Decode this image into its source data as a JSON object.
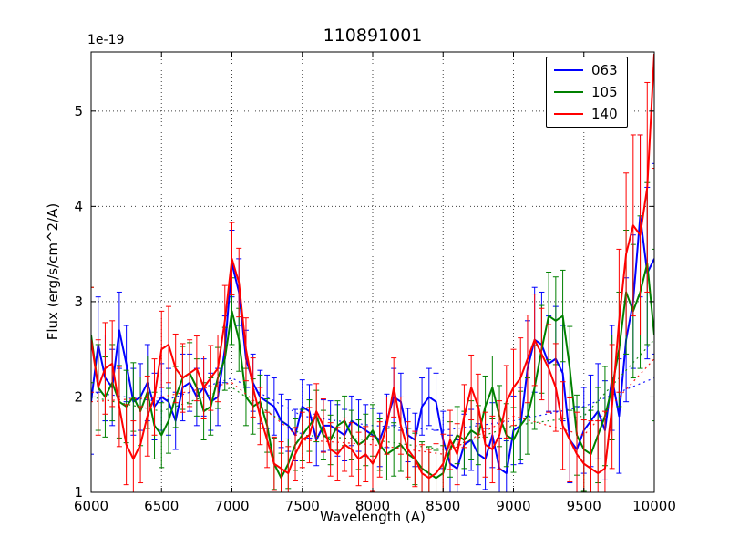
{
  "chart_data": {
    "type": "line",
    "title": "110891001",
    "xlabel": "Wavelength (A)",
    "ylabel": "Flux (erg/s/cm^2/A)",
    "y_offset_text": "1e-19",
    "xlim": [
      6000,
      10000
    ],
    "ylim": [
      1,
      5.62
    ],
    "xticks": [
      6000,
      6500,
      7000,
      7500,
      8000,
      8500,
      9000,
      9500,
      10000
    ],
    "yticks": [
      1,
      2,
      3,
      4,
      5
    ],
    "grid": true,
    "grid_style": "dotted",
    "legend_position": "upper right",
    "x": [
      6000,
      6050,
      6100,
      6150,
      6200,
      6250,
      6300,
      6350,
      6400,
      6450,
      6500,
      6550,
      6600,
      6650,
      6700,
      6750,
      6800,
      6850,
      6900,
      6950,
      7000,
      7050,
      7100,
      7150,
      7200,
      7250,
      7300,
      7350,
      7400,
      7450,
      7500,
      7550,
      7600,
      7650,
      7700,
      7750,
      7800,
      7850,
      7900,
      7950,
      8000,
      8050,
      8100,
      8150,
      8200,
      8250,
      8300,
      8350,
      8400,
      8450,
      8500,
      8550,
      8600,
      8650,
      8700,
      8750,
      8800,
      8850,
      8900,
      8950,
      9000,
      9050,
      9100,
      9150,
      9200,
      9250,
      9300,
      9350,
      9400,
      9450,
      9500,
      9550,
      9600,
      9650,
      9700,
      9750,
      9800,
      9850,
      9900,
      9950,
      10000
    ],
    "continuum_x": [
      6000,
      6500,
      7000,
      7500,
      8000,
      8500,
      9000,
      9500,
      10000
    ],
    "series": [
      {
        "name": "063",
        "color": "#0000ff",
        "values": [
          1.95,
          2.55,
          2.2,
          2.1,
          2.7,
          2.35,
          1.95,
          2.0,
          2.15,
          1.9,
          2.0,
          1.95,
          1.75,
          2.1,
          2.15,
          2.0,
          2.1,
          1.95,
          2.0,
          2.5,
          3.4,
          3.1,
          2.4,
          2.15,
          2.0,
          1.95,
          1.9,
          1.75,
          1.7,
          1.6,
          1.9,
          1.85,
          1.55,
          1.7,
          1.7,
          1.65,
          1.6,
          1.75,
          1.7,
          1.65,
          1.6,
          1.55,
          1.75,
          2.0,
          1.95,
          1.6,
          1.55,
          1.9,
          2.0,
          1.95,
          1.55,
          1.3,
          1.25,
          1.5,
          1.55,
          1.4,
          1.35,
          1.6,
          1.25,
          1.2,
          1.65,
          1.7,
          2.3,
          2.6,
          2.55,
          2.35,
          2.4,
          2.25,
          1.55,
          1.45,
          1.65,
          1.75,
          1.85,
          1.65,
          2.2,
          1.8,
          2.6,
          3.0,
          3.9,
          3.3,
          3.45
        ],
        "errors": [
          0.55,
          0.5,
          0.45,
          0.4,
          0.4,
          0.4,
          0.35,
          0.35,
          0.4,
          0.35,
          0.35,
          0.35,
          0.3,
          0.35,
          0.3,
          0.3,
          0.3,
          0.3,
          0.3,
          0.35,
          0.35,
          0.35,
          0.3,
          0.3,
          0.28,
          0.28,
          0.3,
          0.28,
          0.27,
          0.27,
          0.28,
          0.28,
          0.27,
          0.27,
          0.26,
          0.27,
          0.27,
          0.26,
          0.27,
          0.27,
          0.28,
          0.28,
          0.28,
          0.3,
          0.3,
          0.28,
          0.28,
          0.3,
          0.3,
          0.3,
          0.3,
          0.3,
          0.3,
          0.32,
          0.32,
          0.32,
          0.32,
          0.34,
          0.32,
          0.34,
          0.36,
          0.4,
          0.5,
          0.55,
          0.55,
          0.5,
          0.55,
          0.5,
          0.45,
          0.45,
          0.45,
          0.48,
          0.5,
          0.52,
          0.55,
          0.6,
          0.65,
          0.7,
          0.85,
          0.9,
          1.0
        ],
        "continuum": [
          2.05,
          1.95,
          2.2,
          1.8,
          1.7,
          1.65,
          1.75,
          1.9,
          2.2
        ]
      },
      {
        "name": "105",
        "color": "#008000",
        "values": [
          2.65,
          2.1,
          2.0,
          2.15,
          1.95,
          1.9,
          2.0,
          1.85,
          2.05,
          1.7,
          1.6,
          1.75,
          2.0,
          2.2,
          2.25,
          2.1,
          1.85,
          1.9,
          2.2,
          2.4,
          2.9,
          2.6,
          2.0,
          1.9,
          1.95,
          1.7,
          1.3,
          1.15,
          1.3,
          1.5,
          1.6,
          1.7,
          1.8,
          1.6,
          1.55,
          1.7,
          1.75,
          1.6,
          1.5,
          1.55,
          1.65,
          1.5,
          1.4,
          1.45,
          1.5,
          1.4,
          1.35,
          1.25,
          1.2,
          1.15,
          1.2,
          1.45,
          1.6,
          1.55,
          1.65,
          1.6,
          1.9,
          2.1,
          1.8,
          1.6,
          1.55,
          1.7,
          1.8,
          2.1,
          2.5,
          2.85,
          2.8,
          2.85,
          2.3,
          1.6,
          1.45,
          1.4,
          1.6,
          1.8,
          2.1,
          2.5,
          3.1,
          2.9,
          3.1,
          3.4,
          2.65
        ],
        "errors": [
          0.5,
          0.45,
          0.42,
          0.4,
          0.38,
          0.38,
          0.36,
          0.36,
          0.38,
          0.35,
          0.34,
          0.34,
          0.32,
          0.33,
          0.32,
          0.3,
          0.3,
          0.3,
          0.32,
          0.33,
          0.35,
          0.33,
          0.3,
          0.29,
          0.28,
          0.28,
          0.27,
          0.26,
          0.26,
          0.27,
          0.27,
          0.27,
          0.27,
          0.26,
          0.26,
          0.26,
          0.26,
          0.26,
          0.26,
          0.27,
          0.27,
          0.27,
          0.27,
          0.28,
          0.28,
          0.27,
          0.27,
          0.28,
          0.28,
          0.29,
          0.29,
          0.29,
          0.3,
          0.3,
          0.31,
          0.31,
          0.32,
          0.33,
          0.32,
          0.33,
          0.34,
          0.36,
          0.4,
          0.44,
          0.46,
          0.46,
          0.46,
          0.48,
          0.44,
          0.42,
          0.44,
          0.46,
          0.5,
          0.52,
          0.55,
          0.6,
          0.65,
          0.7,
          0.8,
          0.85,
          0.9
        ],
        "continuum": [
          2.0,
          1.85,
          2.1,
          1.6,
          1.55,
          1.45,
          1.7,
          1.8,
          2.6
        ]
      },
      {
        "name": "140",
        "color": "#ff0000",
        "values": [
          2.6,
          2.1,
          2.3,
          2.35,
          1.9,
          1.5,
          1.35,
          1.5,
          1.8,
          2.0,
          2.5,
          2.55,
          2.3,
          2.2,
          2.25,
          2.3,
          2.1,
          2.2,
          2.3,
          2.8,
          3.45,
          3.2,
          2.5,
          2.1,
          1.8,
          1.55,
          1.3,
          1.25,
          1.2,
          1.4,
          1.55,
          1.6,
          1.85,
          1.7,
          1.45,
          1.4,
          1.5,
          1.45,
          1.35,
          1.4,
          1.3,
          1.45,
          1.7,
          2.1,
          1.7,
          1.45,
          1.35,
          1.2,
          1.15,
          1.2,
          1.3,
          1.55,
          1.4,
          1.8,
          2.1,
          1.9,
          1.5,
          1.45,
          1.6,
          1.95,
          2.1,
          2.2,
          2.4,
          2.6,
          2.45,
          2.3,
          2.1,
          1.7,
          1.55,
          1.4,
          1.3,
          1.25,
          1.2,
          1.25,
          1.9,
          2.8,
          3.5,
          3.8,
          3.7,
          4.2,
          5.6
        ],
        "errors": [
          0.55,
          0.5,
          0.48,
          0.45,
          0.42,
          0.42,
          0.4,
          0.4,
          0.42,
          0.4,
          0.4,
          0.4,
          0.36,
          0.36,
          0.35,
          0.34,
          0.33,
          0.34,
          0.35,
          0.37,
          0.38,
          0.36,
          0.33,
          0.31,
          0.3,
          0.29,
          0.28,
          0.28,
          0.28,
          0.28,
          0.29,
          0.29,
          0.29,
          0.28,
          0.28,
          0.28,
          0.28,
          0.28,
          0.28,
          0.29,
          0.29,
          0.29,
          0.3,
          0.31,
          0.3,
          0.29,
          0.29,
          0.3,
          0.3,
          0.31,
          0.31,
          0.31,
          0.32,
          0.33,
          0.34,
          0.34,
          0.34,
          0.35,
          0.36,
          0.38,
          0.4,
          0.42,
          0.46,
          0.48,
          0.48,
          0.46,
          0.46,
          0.46,
          0.44,
          0.44,
          0.46,
          0.5,
          0.55,
          0.6,
          0.65,
          0.75,
          0.85,
          0.95,
          1.05,
          1.1,
          1.2
        ],
        "continuum": [
          1.95,
          2.0,
          2.15,
          1.55,
          1.5,
          1.4,
          1.8,
          1.6,
          2.4
        ]
      }
    ]
  }
}
